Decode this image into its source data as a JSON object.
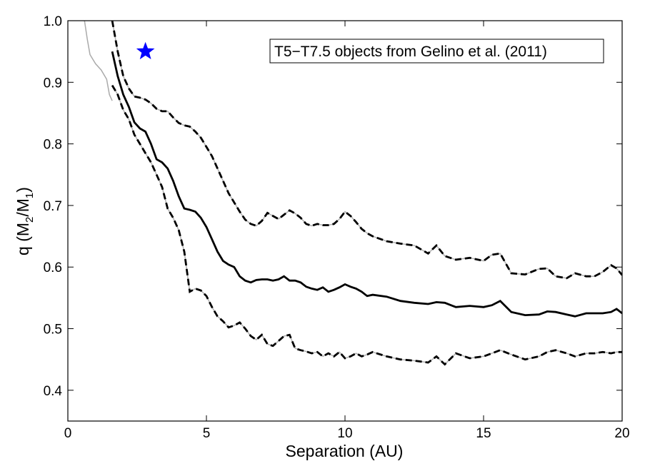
{
  "chart_data": {
    "type": "line",
    "title": "",
    "xlabel": "Separation (AU)",
    "ylabel": "q (M",
    "ylabel_parts": {
      "prefix": "q (M",
      "sub1": "2",
      "mid": "/M",
      "sub2": "1",
      "suffix": ")"
    },
    "xlim": [
      0,
      20
    ],
    "ylim": [
      0.35,
      1.0
    ],
    "xticks": [
      0,
      5,
      10,
      15,
      20
    ],
    "xtick_labels": [
      "0",
      "5",
      "10",
      "15",
      "20"
    ],
    "yticks": [
      0.4,
      0.5,
      0.6,
      0.7,
      0.8,
      0.9,
      1.0
    ],
    "ytick_labels": [
      "0.4",
      "0.5",
      "0.6",
      "0.7",
      "0.8",
      "0.9",
      "1.0"
    ],
    "annotation": "T5−T7.5 objects from Gelino et al. (2011)",
    "marker": {
      "name": "star",
      "x": 2.8,
      "y": 0.95,
      "color": "#0000ff"
    },
    "series": [
      {
        "name": "upper-dashed",
        "style": "dashed",
        "x": [
          1.6,
          1.8,
          2.0,
          2.2,
          2.4,
          2.6,
          2.8,
          3.0,
          3.2,
          3.4,
          3.6,
          3.8,
          4.0,
          4.2,
          4.4,
          4.6,
          4.8,
          5.0,
          5.2,
          5.4,
          5.6,
          5.8,
          6.0,
          6.2,
          6.4,
          6.6,
          6.8,
          7.0,
          7.2,
          7.4,
          7.6,
          7.8,
          8.0,
          8.2,
          8.4,
          8.6,
          8.8,
          9.0,
          9.2,
          9.4,
          9.6,
          9.8,
          10.0,
          10.2,
          10.4,
          10.6,
          10.8,
          11.0,
          11.5,
          12.0,
          12.5,
          13.0,
          13.3,
          13.6,
          14.0,
          14.5,
          15.0,
          15.3,
          15.6,
          16.0,
          16.5,
          17.0,
          17.3,
          17.6,
          18.0,
          18.3,
          18.7,
          19.0,
          19.3,
          19.6,
          19.8,
          20.0
        ],
        "y": [
          1.0,
          0.95,
          0.91,
          0.89,
          0.877,
          0.875,
          0.872,
          0.866,
          0.857,
          0.853,
          0.853,
          0.843,
          0.834,
          0.83,
          0.828,
          0.82,
          0.81,
          0.795,
          0.78,
          0.76,
          0.74,
          0.72,
          0.705,
          0.69,
          0.677,
          0.67,
          0.667,
          0.675,
          0.688,
          0.683,
          0.678,
          0.685,
          0.692,
          0.687,
          0.68,
          0.67,
          0.667,
          0.67,
          0.668,
          0.668,
          0.67,
          0.678,
          0.69,
          0.683,
          0.673,
          0.662,
          0.655,
          0.65,
          0.642,
          0.638,
          0.635,
          0.622,
          0.635,
          0.618,
          0.612,
          0.615,
          0.61,
          0.62,
          0.622,
          0.59,
          0.588,
          0.597,
          0.598,
          0.585,
          0.582,
          0.59,
          0.585,
          0.585,
          0.592,
          0.603,
          0.598,
          0.587
        ]
      },
      {
        "name": "median-solid",
        "style": "solid",
        "x": [
          1.6,
          1.8,
          2.0,
          2.2,
          2.4,
          2.6,
          2.8,
          3.0,
          3.2,
          3.4,
          3.6,
          3.8,
          4.0,
          4.2,
          4.4,
          4.6,
          4.8,
          5.0,
          5.2,
          5.4,
          5.6,
          5.8,
          6.0,
          6.2,
          6.4,
          6.6,
          6.8,
          7.0,
          7.2,
          7.4,
          7.6,
          7.8,
          8.0,
          8.2,
          8.4,
          8.6,
          8.8,
          9.0,
          9.2,
          9.4,
          9.6,
          9.8,
          10.0,
          10.2,
          10.4,
          10.6,
          10.8,
          11.0,
          11.5,
          12.0,
          12.5,
          13.0,
          13.3,
          13.6,
          14.0,
          14.5,
          15.0,
          15.3,
          15.6,
          16.0,
          16.5,
          17.0,
          17.3,
          17.6,
          18.0,
          18.3,
          18.7,
          19.0,
          19.3,
          19.6,
          19.8,
          20.0
        ],
        "y": [
          0.95,
          0.91,
          0.88,
          0.86,
          0.835,
          0.825,
          0.82,
          0.8,
          0.775,
          0.77,
          0.76,
          0.74,
          0.715,
          0.695,
          0.693,
          0.69,
          0.68,
          0.665,
          0.645,
          0.625,
          0.61,
          0.604,
          0.6,
          0.585,
          0.578,
          0.575,
          0.579,
          0.58,
          0.58,
          0.578,
          0.58,
          0.585,
          0.578,
          0.578,
          0.575,
          0.568,
          0.565,
          0.563,
          0.567,
          0.56,
          0.563,
          0.567,
          0.572,
          0.568,
          0.565,
          0.56,
          0.553,
          0.555,
          0.552,
          0.545,
          0.542,
          0.54,
          0.543,
          0.542,
          0.535,
          0.537,
          0.535,
          0.538,
          0.545,
          0.527,
          0.522,
          0.523,
          0.528,
          0.527,
          0.523,
          0.52,
          0.525,
          0.525,
          0.525,
          0.527,
          0.532,
          0.525
        ]
      },
      {
        "name": "lower-dashed",
        "style": "dashed",
        "x": [
          1.6,
          1.8,
          2.0,
          2.2,
          2.4,
          2.6,
          2.8,
          3.0,
          3.2,
          3.4,
          3.6,
          3.8,
          4.0,
          4.2,
          4.4,
          4.6,
          4.8,
          5.0,
          5.2,
          5.4,
          5.6,
          5.8,
          6.0,
          6.2,
          6.4,
          6.6,
          6.8,
          7.0,
          7.2,
          7.4,
          7.6,
          7.8,
          8.0,
          8.2,
          8.4,
          8.6,
          8.8,
          9.0,
          9.2,
          9.4,
          9.6,
          9.8,
          10.0,
          10.2,
          10.4,
          10.6,
          10.8,
          11.0,
          11.5,
          12.0,
          12.5,
          13.0,
          13.3,
          13.6,
          14.0,
          14.5,
          15.0,
          15.3,
          15.6,
          16.0,
          16.5,
          17.0,
          17.3,
          17.6,
          18.0,
          18.3,
          18.7,
          19.0,
          19.3,
          19.6,
          19.8,
          20.0
        ],
        "y": [
          0.895,
          0.88,
          0.855,
          0.84,
          0.815,
          0.8,
          0.785,
          0.77,
          0.75,
          0.73,
          0.695,
          0.68,
          0.66,
          0.625,
          0.56,
          0.565,
          0.562,
          0.553,
          0.535,
          0.52,
          0.512,
          0.502,
          0.505,
          0.51,
          0.5,
          0.488,
          0.482,
          0.49,
          0.475,
          0.472,
          0.48,
          0.488,
          0.49,
          0.468,
          0.465,
          0.463,
          0.46,
          0.462,
          0.455,
          0.46,
          0.455,
          0.462,
          0.452,
          0.455,
          0.46,
          0.455,
          0.458,
          0.462,
          0.455,
          0.45,
          0.448,
          0.445,
          0.455,
          0.442,
          0.46,
          0.452,
          0.455,
          0.46,
          0.465,
          0.458,
          0.45,
          0.455,
          0.462,
          0.465,
          0.46,
          0.455,
          0.46,
          0.46,
          0.462,
          0.46,
          0.462,
          0.462
        ]
      },
      {
        "name": "gray-thin",
        "style": "thin-gray",
        "x": [
          0.6,
          0.7,
          0.8,
          1.0,
          1.2,
          1.4,
          1.5,
          1.6
        ],
        "y": [
          1.0,
          0.97,
          0.945,
          0.93,
          0.92,
          0.905,
          0.88,
          0.87
        ]
      }
    ]
  }
}
